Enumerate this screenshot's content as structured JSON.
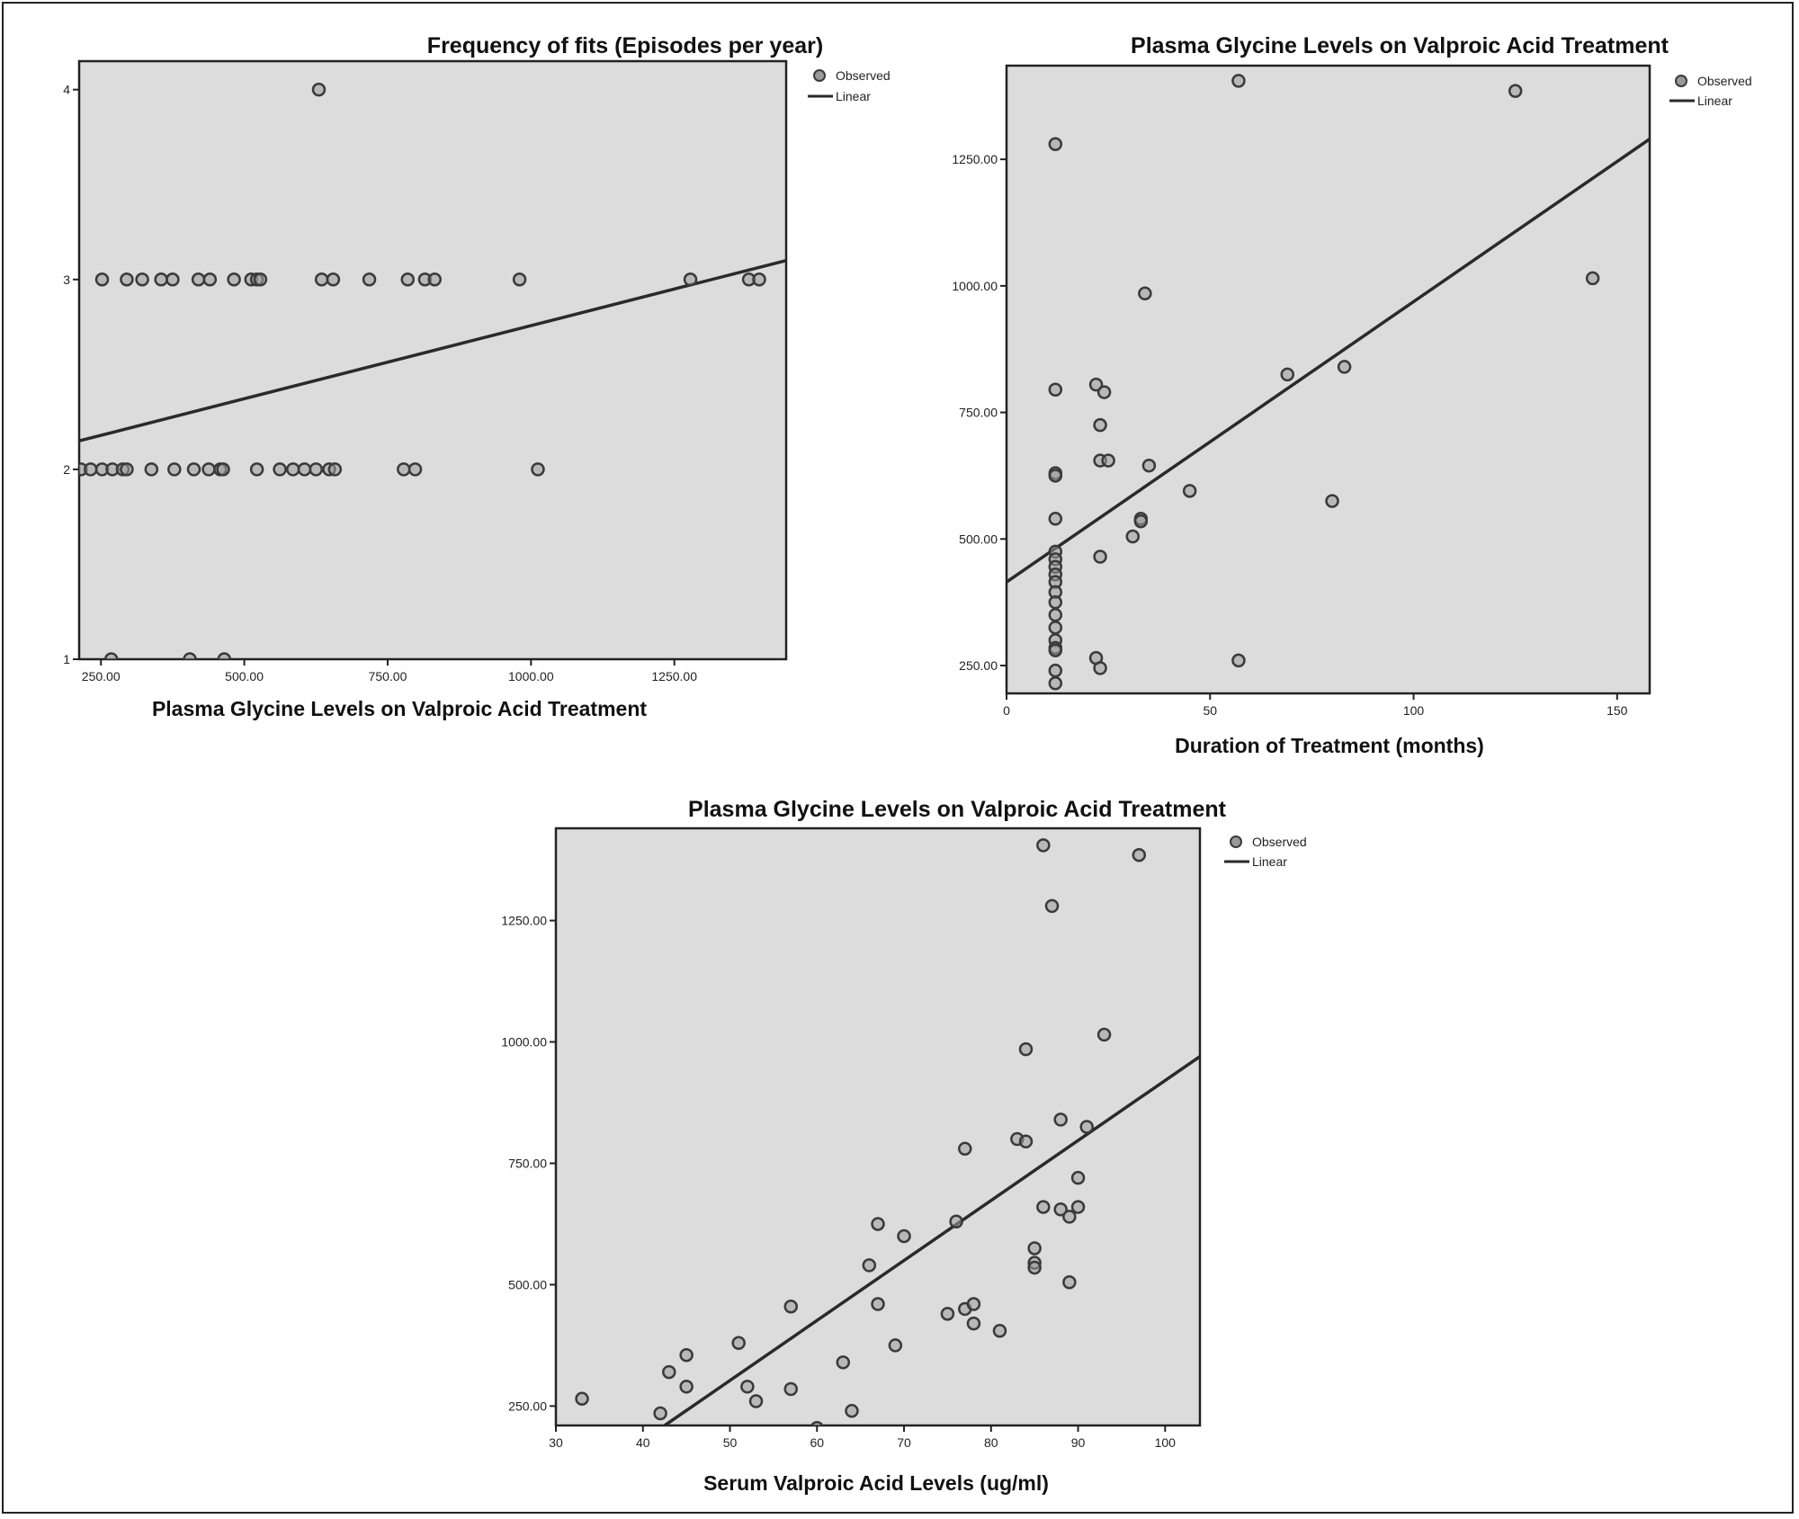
{
  "colors": {
    "plot_bg": "#dcdcdc",
    "axis": "#222222",
    "marker_fill": "#9a9a9a",
    "marker_stroke": "#3a3a3a",
    "fit_line": "#2a2a2a"
  },
  "legend": {
    "observed": "Observed",
    "linear": "Linear"
  },
  "chart_data": [
    {
      "type": "scatter",
      "title": "Frequency of fits (Episodes per year)",
      "xlabel": "Plasma Glycine Levels on Valproic Acid Treatment",
      "ylabel": "",
      "xlim": [
        212,
        1445
      ],
      "ylim": [
        1,
        4.15
      ],
      "xticks": [
        {
          "v": 250,
          "label": "250.00"
        },
        {
          "v": 500,
          "label": "500.00"
        },
        {
          "v": 750,
          "label": "750.00"
        },
        {
          "v": 1000,
          "label": "1000.00"
        },
        {
          "v": 1250,
          "label": "1250.00"
        }
      ],
      "yticks": [
        {
          "v": 1,
          "label": "1"
        },
        {
          "v": 2,
          "label": "2"
        },
        {
          "v": 3,
          "label": "3"
        },
        {
          "v": 4,
          "label": "4"
        }
      ],
      "points": [
        [
          630,
          4
        ],
        [
          252,
          3
        ],
        [
          295,
          3
        ],
        [
          322,
          3
        ],
        [
          355,
          3
        ],
        [
          375,
          3
        ],
        [
          420,
          3
        ],
        [
          440,
          3
        ],
        [
          482,
          3
        ],
        [
          512,
          3
        ],
        [
          522,
          3
        ],
        [
          528,
          3
        ],
        [
          635,
          3
        ],
        [
          655,
          3
        ],
        [
          718,
          3
        ],
        [
          785,
          3
        ],
        [
          815,
          3
        ],
        [
          832,
          3
        ],
        [
          980,
          3
        ],
        [
          1278,
          3
        ],
        [
          1380,
          3
        ],
        [
          1398,
          3
        ],
        [
          215,
          2
        ],
        [
          232,
          2
        ],
        [
          252,
          2
        ],
        [
          270,
          2
        ],
        [
          288,
          2
        ],
        [
          295,
          2
        ],
        [
          338,
          2
        ],
        [
          378,
          2
        ],
        [
          412,
          2
        ],
        [
          438,
          2
        ],
        [
          458,
          2
        ],
        [
          463,
          2
        ],
        [
          522,
          2
        ],
        [
          562,
          2
        ],
        [
          585,
          2
        ],
        [
          605,
          2
        ],
        [
          625,
          2
        ],
        [
          648,
          2
        ],
        [
          658,
          2
        ],
        [
          778,
          2
        ],
        [
          798,
          2
        ],
        [
          1012,
          2
        ],
        [
          268,
          1
        ],
        [
          405,
          1
        ],
        [
          465,
          1
        ]
      ],
      "fit": [
        [
          212,
          2.15
        ],
        [
          1445,
          3.1
        ]
      ],
      "legend_position": "top-right"
    },
    {
      "type": "scatter",
      "title": "Plasma Glycine Levels on Valproic Acid Treatment",
      "xlabel": "Duration of Treatment (months)",
      "ylabel": "",
      "xlim": [
        0,
        158
      ],
      "ylim": [
        195,
        1435
      ],
      "xticks": [
        {
          "v": 0,
          "label": "0"
        },
        {
          "v": 50,
          "label": "50"
        },
        {
          "v": 100,
          "label": "100"
        },
        {
          "v": 150,
          "label": "150"
        }
      ],
      "yticks": [
        {
          "v": 250,
          "label": "250.00"
        },
        {
          "v": 500,
          "label": "500.00"
        },
        {
          "v": 750,
          "label": "750.00"
        },
        {
          "v": 1000,
          "label": "1000.00"
        },
        {
          "v": 1250,
          "label": "1250.00"
        }
      ],
      "points": [
        [
          12,
          1280
        ],
        [
          57,
          1405
        ],
        [
          125,
          1385
        ],
        [
          144,
          1015
        ],
        [
          34,
          985
        ],
        [
          12,
          795
        ],
        [
          22,
          805
        ],
        [
          24,
          790
        ],
        [
          23,
          725
        ],
        [
          69,
          825
        ],
        [
          83,
          840
        ],
        [
          23,
          655
        ],
        [
          25,
          655
        ],
        [
          35,
          645
        ],
        [
          12,
          630
        ],
        [
          12,
          625
        ],
        [
          45,
          595
        ],
        [
          80,
          575
        ],
        [
          12,
          540
        ],
        [
          33,
          540
        ],
        [
          33,
          535
        ],
        [
          31,
          505
        ],
        [
          23,
          465
        ],
        [
          12,
          475
        ],
        [
          12,
          460
        ],
        [
          12,
          445
        ],
        [
          12,
          430
        ],
        [
          12,
          415
        ],
        [
          12,
          395
        ],
        [
          12,
          375
        ],
        [
          12,
          350
        ],
        [
          12,
          325
        ],
        [
          12,
          300
        ],
        [
          12,
          285
        ],
        [
          12,
          280
        ],
        [
          12,
          240
        ],
        [
          12,
          215
        ],
        [
          22,
          265
        ],
        [
          23,
          245
        ],
        [
          57,
          260
        ]
      ],
      "fit": [
        [
          0,
          415
        ],
        [
          158,
          1290
        ]
      ],
      "legend_position": "top-right"
    },
    {
      "type": "scatter",
      "title": "Plasma Glycine Levels on Valproic Acid Treatment",
      "xlabel": "Serum Valproic Acid Levels (ug/ml)",
      "ylabel": "",
      "xlim": [
        30,
        104
      ],
      "ylim": [
        210,
        1440
      ],
      "xticks": [
        {
          "v": 30,
          "label": "30"
        },
        {
          "v": 40,
          "label": "40"
        },
        {
          "v": 50,
          "label": "50"
        },
        {
          "v": 60,
          "label": "60"
        },
        {
          "v": 70,
          "label": "70"
        },
        {
          "v": 80,
          "label": "80"
        },
        {
          "v": 90,
          "label": "90"
        },
        {
          "v": 100,
          "label": "100"
        }
      ],
      "yticks": [
        {
          "v": 250,
          "label": "250.00"
        },
        {
          "v": 500,
          "label": "500.00"
        },
        {
          "v": 750,
          "label": "750.00"
        },
        {
          "v": 1000,
          "label": "1000.00"
        },
        {
          "v": 1250,
          "label": "1250.00"
        }
      ],
      "points": [
        [
          86,
          1405
        ],
        [
          97,
          1385
        ],
        [
          87,
          1280
        ],
        [
          93,
          1015
        ],
        [
          84,
          985
        ],
        [
          88,
          840
        ],
        [
          91,
          825
        ],
        [
          77,
          780
        ],
        [
          83,
          800
        ],
        [
          84,
          795
        ],
        [
          90,
          720
        ],
        [
          86,
          660
        ],
        [
          88,
          655
        ],
        [
          89,
          640
        ],
        [
          90,
          660
        ],
        [
          67,
          625
        ],
        [
          76,
          630
        ],
        [
          70,
          600
        ],
        [
          85,
          575
        ],
        [
          66,
          540
        ],
        [
          85,
          545
        ],
        [
          85,
          535
        ],
        [
          89,
          505
        ],
        [
          57,
          455
        ],
        [
          67,
          460
        ],
        [
          75,
          440
        ],
        [
          77,
          450
        ],
        [
          78,
          460
        ],
        [
          78,
          420
        ],
        [
          81,
          405
        ],
        [
          51,
          380
        ],
        [
          69,
          375
        ],
        [
          45,
          355
        ],
        [
          43,
          320
        ],
        [
          63,
          340
        ],
        [
          45,
          290
        ],
        [
          52,
          290
        ],
        [
          57,
          285
        ],
        [
          53,
          260
        ],
        [
          33,
          265
        ],
        [
          42,
          235
        ],
        [
          64,
          240
        ],
        [
          60,
          205
        ]
      ],
      "fit": [
        [
          42.5,
          210
        ],
        [
          104,
          970
        ]
      ],
      "legend_position": "top-right"
    }
  ]
}
